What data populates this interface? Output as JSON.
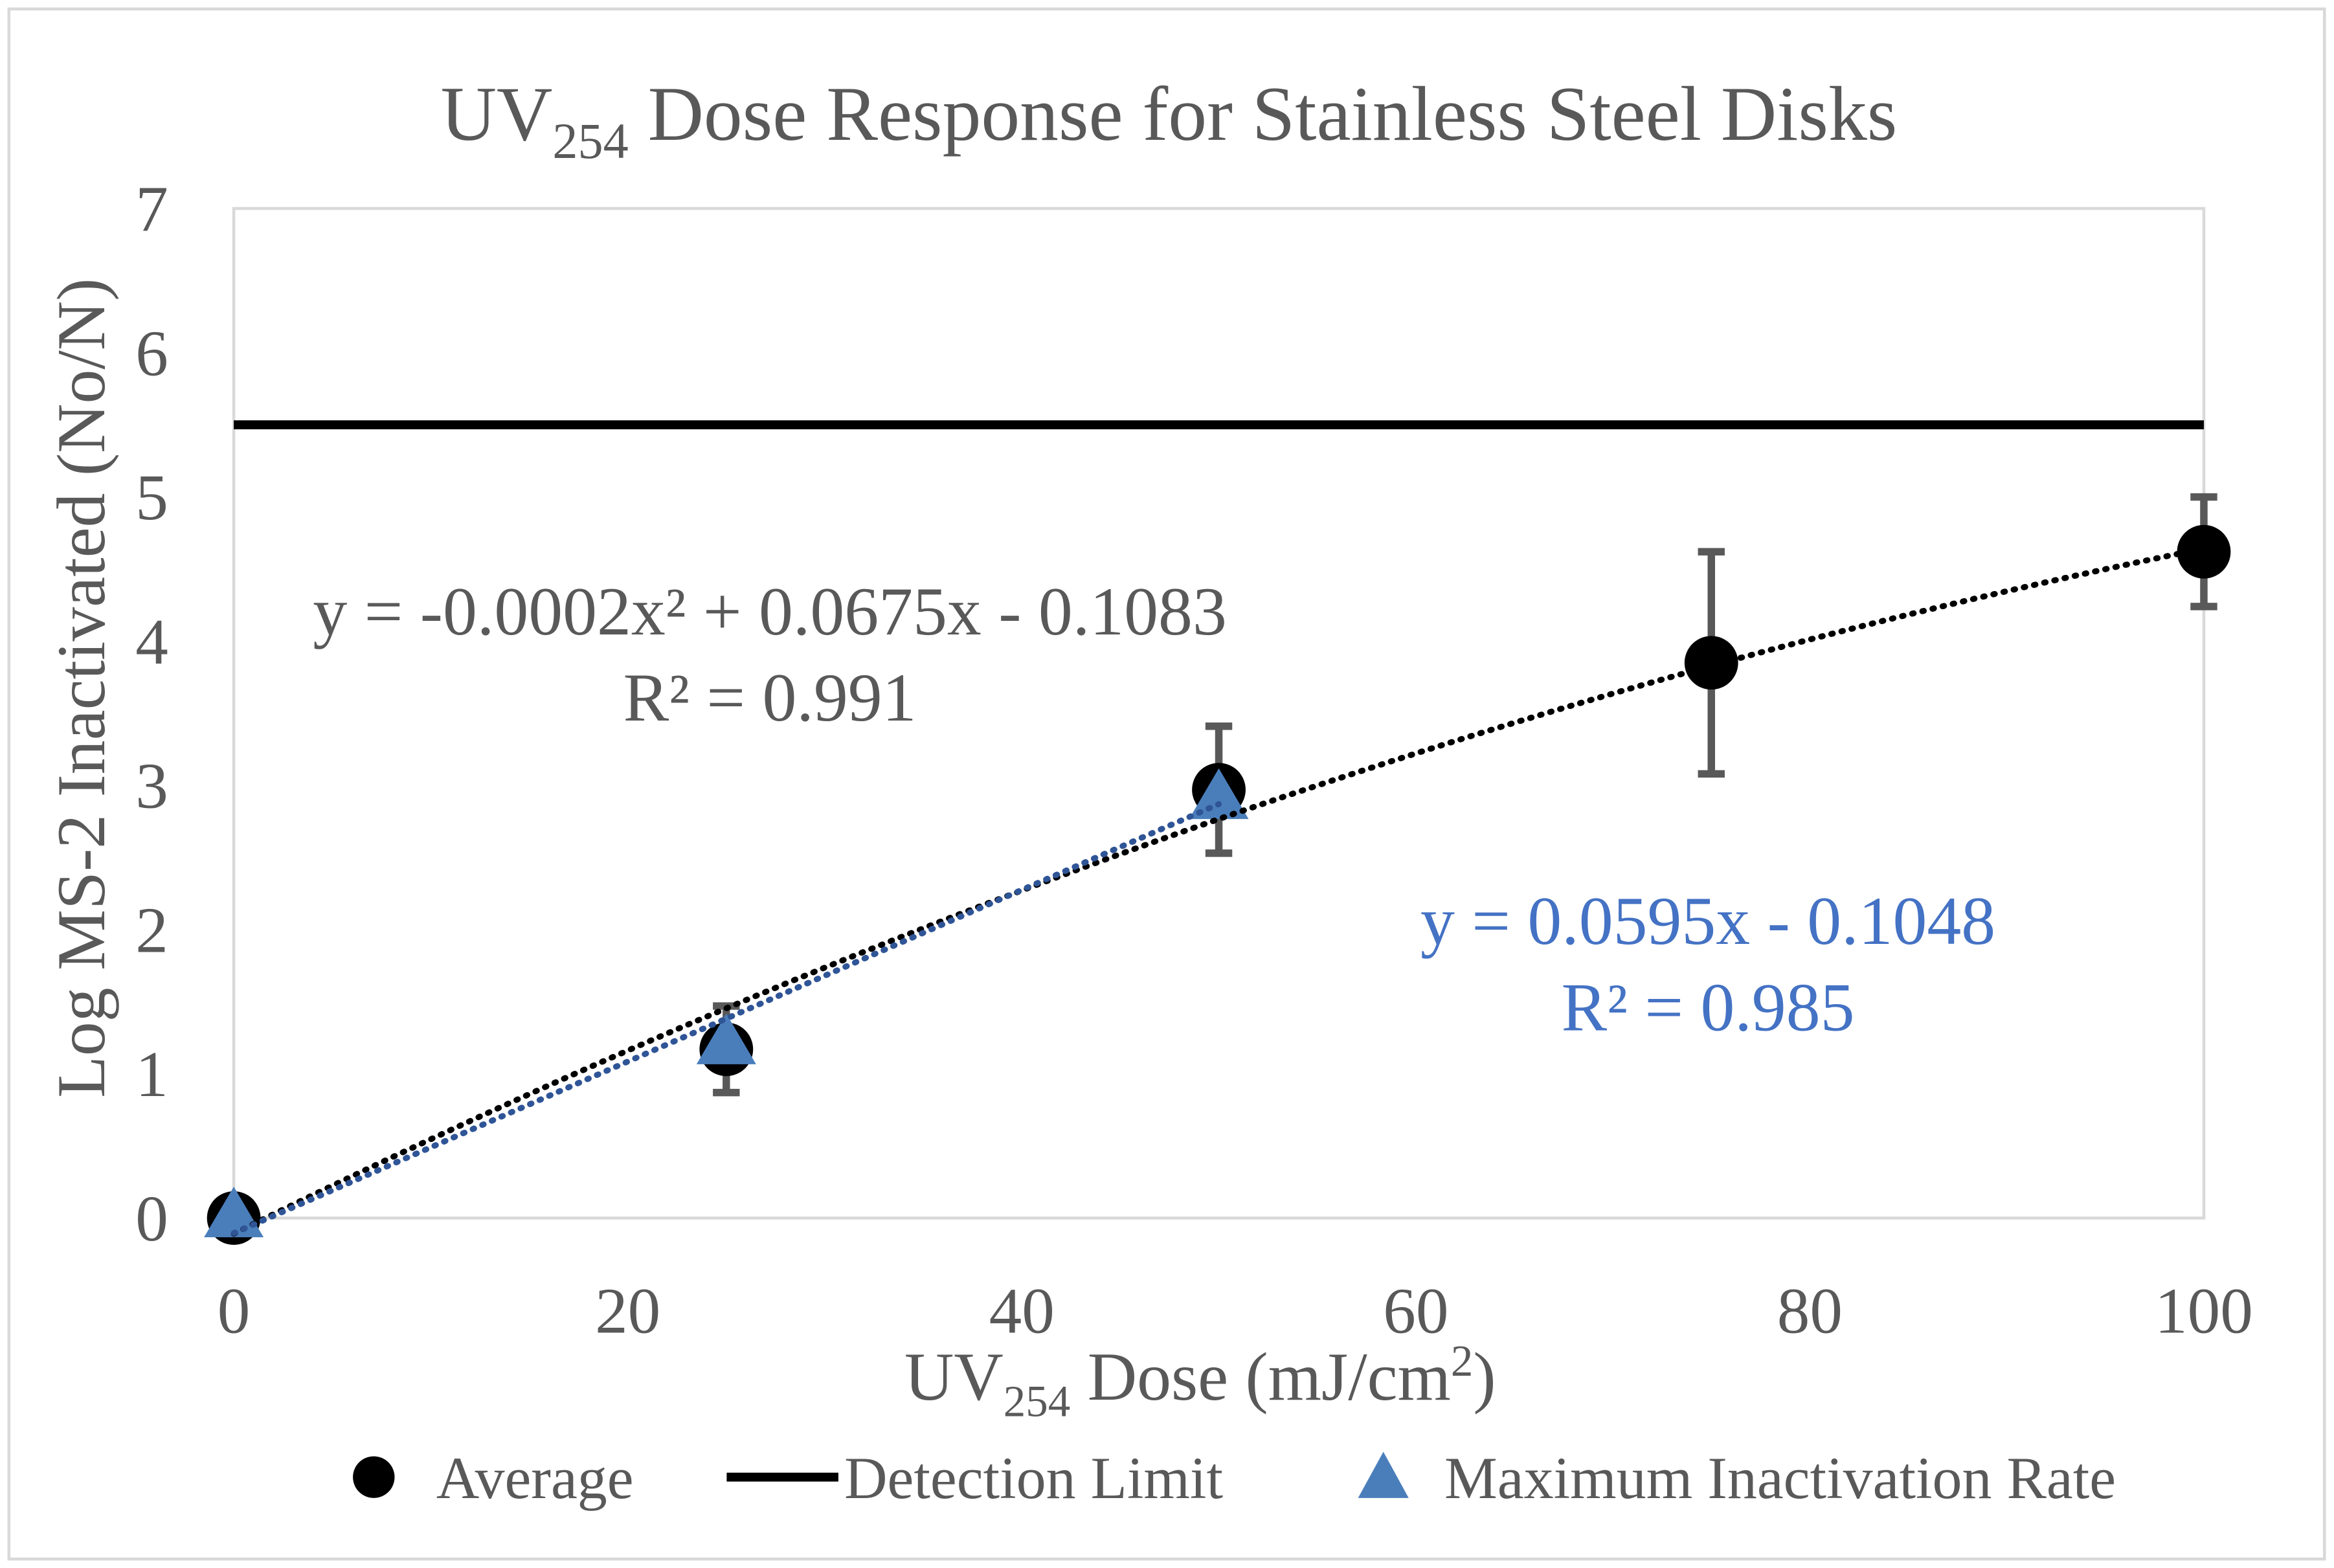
{
  "chart_data": {
    "type": "scatter",
    "title": {
      "main": "UV",
      "subscript": "254",
      "rest": " Dose Response for Stainless Steel Disks"
    },
    "xlabel": {
      "main": "UV",
      "subscript": "254",
      "rest": " Dose (mJ/cm",
      "superscript": "2",
      "end": ")"
    },
    "ylabel": "Log MS-2 Inactivated (No/N)",
    "xlim": [
      0,
      100
    ],
    "ylim": [
      0,
      7
    ],
    "xticks": [
      0,
      20,
      40,
      60,
      80,
      100
    ],
    "yticks": [
      0,
      1,
      2,
      3,
      4,
      5,
      6,
      7
    ],
    "grid": false,
    "legend_position": "bottom",
    "series": [
      {
        "name": "Average",
        "kind": "markers",
        "marker": "circle",
        "color": "#000000",
        "x": [
          0,
          25,
          50,
          75,
          100
        ],
        "y": [
          0,
          1.17,
          2.97,
          3.85,
          4.62
        ],
        "error": [
          0,
          0.3,
          0.44,
          0.77,
          0.38
        ],
        "error_color": "#595959"
      },
      {
        "name": "Detection Limit",
        "kind": "hline",
        "color": "#000000",
        "y": 5.5
      },
      {
        "name": "Maximum Inactivation Rate",
        "kind": "markers",
        "marker": "triangle",
        "color": "#4A7EBB",
        "x": [
          0,
          25,
          50
        ],
        "y": [
          0,
          1.2,
          2.9
        ]
      }
    ],
    "trendlines": [
      {
        "series": "Average",
        "type": "polynomial",
        "coefficients": [
          -0.0002,
          0.0675,
          -0.1083
        ],
        "x_range": [
          0,
          100
        ],
        "color": "#000000",
        "equation": "y = -0.0002x² + 0.0675x - 0.1083",
        "r2": "R² = 0.991"
      },
      {
        "series": "Maximum Inactivation Rate",
        "type": "linear",
        "coefficients": [
          0,
          0.0595,
          -0.1048
        ],
        "x_range": [
          0,
          50
        ],
        "color": "#2F5597",
        "equation": "y = 0.0595x - 0.1048",
        "r2": "R² = 0.985"
      }
    ],
    "legend": [
      "Average",
      "Detection Limit",
      "Maximum Inactivation Rate"
    ]
  }
}
